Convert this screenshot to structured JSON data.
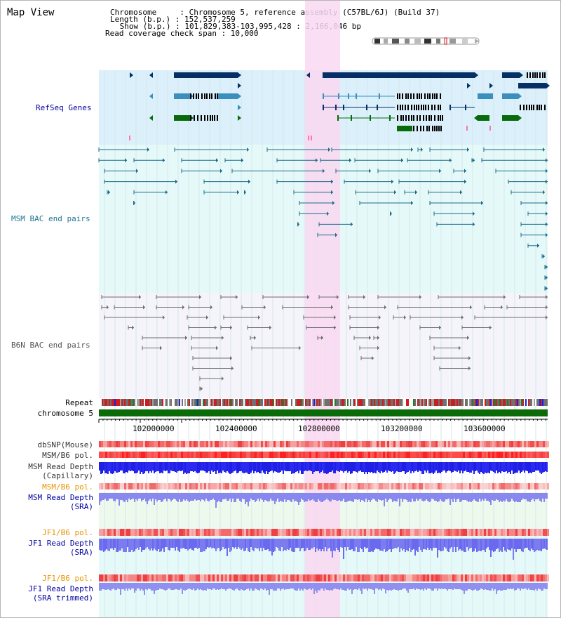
{
  "page": {
    "title": "Map View"
  },
  "header": {
    "chromosome_label": "Chromosome     : Chromosome 5, reference assembly (C57BL/6J) (Build 37)",
    "length_label": "Length (b.p.) : 152,537,259",
    "show_label": " Show (b.p.) : 101,829,383-103,995,428 : 2,166,046 bp",
    "coverage_label": "Read coverage check span : 10,000"
  },
  "tracks": {
    "refseq": "RefSeq Genes",
    "msm_bac": "MSM BAC end pairs",
    "b6n_bac": "B6N BAC end pairs",
    "repeat": "Repeat",
    "chromosome": "chromosome 5",
    "dbsnp": "dbSNP(Mouse)",
    "msm_b6_pol_1": "MSM/B6 pol.",
    "msm_read_depth_cap_1": "MSM Read Depth",
    "msm_read_depth_cap_2": "(Capillary)",
    "msm_b6_pol_2": "MSM/B6 pol.",
    "msm_read_depth_sra_1": "MSM Read Depth",
    "msm_read_depth_sra_2": "(SRA)",
    "jf1_b6_pol_1": "JF1/B6 pol.",
    "jf1_read_depth_sra_1": "JF1 Read Depth",
    "jf1_read_depth_sra_2": "(SRA)",
    "jf1_b6_pol_2": "JF1/B6 pol.",
    "jf1_read_depth_trim_1": "JF1 Read Depth",
    "jf1_read_depth_trim_2": "(SRA trimmed)"
  },
  "ruler": {
    "ticks": [
      "102000000",
      "102400000",
      "102800000",
      "103200000",
      "103600000"
    ]
  },
  "colors": {
    "refseq_bg": "#dbf0fb",
    "msm_bg": "#e6f9f9",
    "b6n_bg": "#f4f4fa",
    "highlight": "#f9d8f1",
    "gene_dark": "#062f66",
    "gene_light": "#3b8fbd",
    "gene_green": "#086a0b",
    "chromosome_bar": "#0a6b08",
    "msm_pair": "#1a6a8a",
    "b6n_pair": "#6e6e6e",
    "depth_blue": "#1f1fe6",
    "depth_light": "#7c7cf0",
    "pol_red": "#f06060",
    "label_blue": "#0000a0",
    "label_teal": "#207890",
    "label_orange": "#e69400"
  }
}
